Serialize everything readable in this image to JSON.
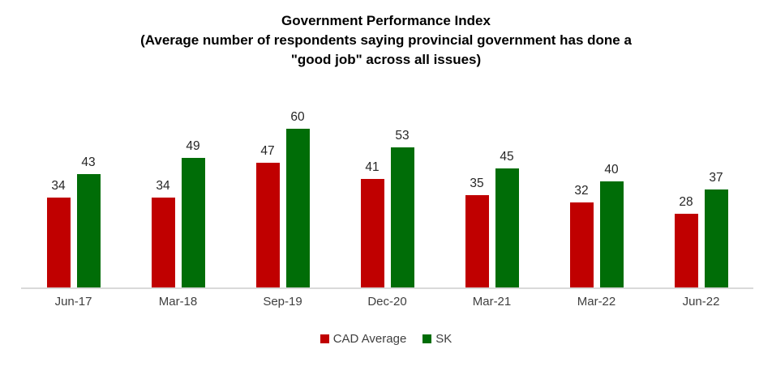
{
  "title": {
    "line1": "Government Performance Index",
    "line2": "(Average number of respondents saying provincial government has done a",
    "line3": "\"good job\" across all issues)"
  },
  "chart_data": {
    "type": "bar",
    "title": "Government Performance Index (Average number of respondents saying provincial government has done a \"good job\" across all issues)",
    "categories": [
      "Jun-17",
      "Mar-18",
      "Sep-19",
      "Dec-20",
      "Mar-21",
      "Mar-22",
      "Jun-22"
    ],
    "series": [
      {
        "name": "CAD Average",
        "color": "#c00000",
        "values": [
          34,
          34,
          47,
          41,
          35,
          32,
          28
        ]
      },
      {
        "name": "SK",
        "color": "#006d07",
        "values": [
          43,
          49,
          60,
          53,
          45,
          40,
          37
        ]
      }
    ],
    "xlabel": "",
    "ylabel": "",
    "ylim": [
      0,
      65
    ],
    "data_labels": true,
    "grid": false,
    "y_axis_visible": false,
    "baseline_color": "#d9d9d9",
    "legend_position": "bottom"
  }
}
